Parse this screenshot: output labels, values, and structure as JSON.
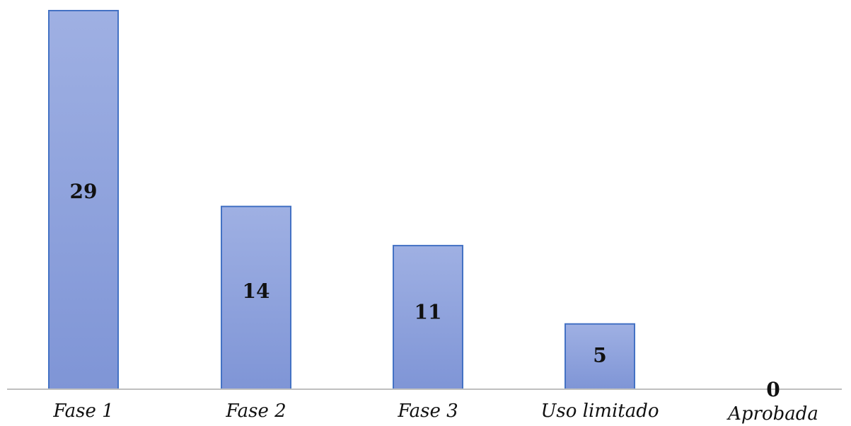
{
  "chart_data": {
    "type": "bar",
    "categories": [
      "Fase 1",
      "Fase 2",
      "Fase 3",
      "Uso limitado",
      "Aprobada"
    ],
    "values": [
      29,
      14,
      11,
      5,
      0
    ],
    "data_labels": [
      "29",
      "14",
      "11",
      "5",
      "0"
    ],
    "title": "",
    "xlabel": "",
    "ylabel": "",
    "ylim": [
      0,
      29
    ],
    "grid": false,
    "legend": "none",
    "colors": {
      "bar_fill_top": "#9fb0e3",
      "bar_fill_bottom": "#7f95d6",
      "bar_stroke": "#4472c4",
      "axis": "#bfbfbf",
      "text": "#111111"
    }
  }
}
